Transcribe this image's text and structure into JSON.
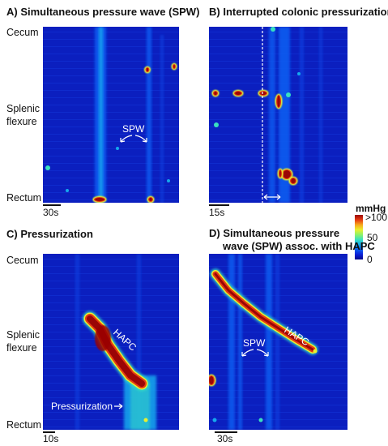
{
  "colors": {
    "bg": "#ffffff",
    "text": "#111111",
    "annotation": "#ffffff"
  },
  "colormap": [
    "#06078a",
    "#0a1fd8",
    "#0a5cf0",
    "#15a8ee",
    "#39e0c0",
    "#8cf26a",
    "#eaf02e",
    "#f7a81c",
    "#e53a12",
    "#9a0606"
  ],
  "chart_data": [
    {
      "type": "heatmap",
      "title": "A) Simultaneous pressure wave (SPW)",
      "ylabels": {
        "top": "Cecum",
        "middle": "Splenic flexure",
        "bottom": "Rectum"
      },
      "scale_bar": "30s",
      "annotations": [
        "SPW"
      ],
      "colorbar": {
        "label": "mmHg",
        "ticks": [
          "0",
          "50",
          ">100"
        ],
        "range": [
          0,
          100
        ]
      }
    },
    {
      "type": "heatmap",
      "title": "B) Interrupted colonic pressurizations",
      "scale_bar": "15s",
      "annotations": [],
      "colorbar": {
        "label": "mmHg",
        "ticks": [
          "0",
          "50",
          ">100"
        ],
        "range": [
          0,
          100
        ]
      }
    },
    {
      "type": "heatmap",
      "title": "C) Pressurization",
      "ylabels": {
        "top": "Cecum",
        "middle": "Splenic flexure",
        "bottom": "Rectum"
      },
      "scale_bar": "10s",
      "annotations": [
        "HAPC",
        "Pressurization"
      ],
      "colorbar": {
        "label": "mmHg",
        "ticks": [
          "0",
          "50",
          ">100"
        ],
        "range": [
          0,
          100
        ]
      }
    },
    {
      "type": "heatmap",
      "title": "D) Simultaneous pressure wave (SPW) assoc. with HAPC",
      "scale_bar": "30s",
      "annotations": [
        "SPW",
        "HAPC"
      ],
      "colorbar": {
        "label": "mmHg",
        "ticks": [
          "0",
          "50",
          ">100"
        ],
        "range": [
          0,
          100
        ]
      }
    }
  ],
  "panels": {
    "a": {
      "title": "A) Simultaneous pressure wave (SPW)",
      "cecum": "Cecum",
      "splenic1": "Splenic",
      "splenic2": "flexure",
      "rectum": "Rectum",
      "scale": "30s",
      "spw": "SPW"
    },
    "b": {
      "title": "B) Interrupted colonic pressurizations",
      "scale": "15s"
    },
    "c": {
      "title": "C) Pressurization",
      "cecum": "Cecum",
      "splenic1": "Splenic",
      "splenic2": "flexure",
      "rectum": "Rectum",
      "scale": "10s",
      "hapc": "HAPC",
      "pressurization": "Pressurization"
    },
    "d": {
      "title1": "D) Simultaneous pressure",
      "title2": "wave (SPW) assoc. with HAPC",
      "scale": "30s",
      "spw": "SPW",
      "hapc": "HAPC"
    }
  },
  "colorbar": {
    "label": "mmHg",
    "tick_top": ">100",
    "tick_mid": "50",
    "tick_bottom": "0"
  }
}
